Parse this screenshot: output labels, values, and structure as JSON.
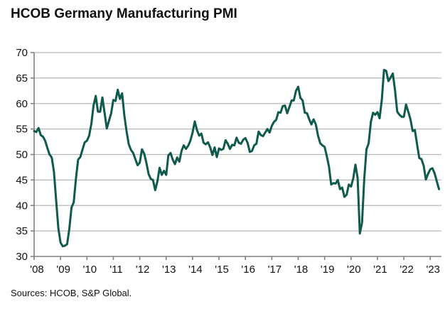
{
  "chart_data": {
    "type": "line",
    "title": "HCOB Germany Manufacturing PMI",
    "source": "Sources: HCOB, S&P Global.",
    "xlabel": "",
    "ylabel": "",
    "ylim": [
      30,
      70
    ],
    "yticks": [
      "30",
      "35",
      "40",
      "45",
      "50",
      "55",
      "60",
      "65",
      "70"
    ],
    "xticks": [
      "'08",
      "'09",
      "'10",
      "'11",
      "'12",
      "'13",
      "'14",
      "'15",
      "'16",
      "'17",
      "'18",
      "'19",
      "'20",
      "'21",
      "'22",
      "'23"
    ],
    "grid": "horizontal",
    "line_color": "#0e5a4c",
    "series": [
      {
        "x": [
          "2008-01",
          "2008-02",
          "2008-03",
          "2008-04",
          "2008-05",
          "2008-06",
          "2008-07",
          "2008-08",
          "2008-09",
          "2008-10",
          "2008-11",
          "2008-12",
          "2009-01",
          "2009-02",
          "2009-03",
          "2009-04",
          "2009-05",
          "2009-06",
          "2009-07",
          "2009-08",
          "2009-09",
          "2009-10",
          "2009-11",
          "2009-12",
          "2010-01",
          "2010-02",
          "2010-03",
          "2010-04",
          "2010-05",
          "2010-06",
          "2010-07",
          "2010-08",
          "2010-09",
          "2010-10",
          "2010-11",
          "2010-12",
          "2011-01",
          "2011-02",
          "2011-03",
          "2011-04",
          "2011-05",
          "2011-06",
          "2011-07",
          "2011-08",
          "2011-09",
          "2011-10",
          "2011-11",
          "2011-12",
          "2012-01",
          "2012-02",
          "2012-03",
          "2012-04",
          "2012-05",
          "2012-06",
          "2012-07",
          "2012-08",
          "2012-09",
          "2012-10",
          "2012-11",
          "2012-12",
          "2013-01",
          "2013-02",
          "2013-03",
          "2013-04",
          "2013-05",
          "2013-06",
          "2013-07",
          "2013-08",
          "2013-09",
          "2013-10",
          "2013-11",
          "2013-12",
          "2014-01",
          "2014-02",
          "2014-03",
          "2014-04",
          "2014-05",
          "2014-06",
          "2014-07",
          "2014-08",
          "2014-09",
          "2014-10",
          "2014-11",
          "2014-12",
          "2015-01",
          "2015-02",
          "2015-03",
          "2015-04",
          "2015-05",
          "2015-06",
          "2015-07",
          "2015-08",
          "2015-09",
          "2015-10",
          "2015-11",
          "2015-12",
          "2016-01",
          "2016-02",
          "2016-03",
          "2016-04",
          "2016-05",
          "2016-06",
          "2016-07",
          "2016-08",
          "2016-09",
          "2016-10",
          "2016-11",
          "2016-12",
          "2017-01",
          "2017-02",
          "2017-03",
          "2017-04",
          "2017-05",
          "2017-06",
          "2017-07",
          "2017-08",
          "2017-09",
          "2017-10",
          "2017-11",
          "2017-12",
          "2018-01",
          "2018-02",
          "2018-03",
          "2018-04",
          "2018-05",
          "2018-06",
          "2018-07",
          "2018-08",
          "2018-09",
          "2018-10",
          "2018-11",
          "2018-12",
          "2019-01",
          "2019-02",
          "2019-03",
          "2019-04",
          "2019-05",
          "2019-06",
          "2019-07",
          "2019-08",
          "2019-09",
          "2019-10",
          "2019-11",
          "2019-12",
          "2020-01",
          "2020-02",
          "2020-03",
          "2020-04",
          "2020-05",
          "2020-06",
          "2020-07",
          "2020-08",
          "2020-09",
          "2020-10",
          "2020-11",
          "2020-12",
          "2021-01",
          "2021-02",
          "2021-03",
          "2021-04",
          "2021-05",
          "2021-06",
          "2021-07",
          "2021-08",
          "2021-09",
          "2021-10",
          "2021-11",
          "2021-12",
          "2022-01",
          "2022-02",
          "2022-03",
          "2022-04",
          "2022-05",
          "2022-06",
          "2022-07",
          "2022-08",
          "2022-09",
          "2022-10",
          "2022-11",
          "2022-12",
          "2023-01",
          "2023-02",
          "2023-03",
          "2023-04",
          "2023-05"
        ],
        "values": [
          54.6,
          54.4,
          55.2,
          53.8,
          53.5,
          52.7,
          51.3,
          50.0,
          49.4,
          46.6,
          41.0,
          35.5,
          32.7,
          32.0,
          32.1,
          32.4,
          35.4,
          39.6,
          40.6,
          45.2,
          49.0,
          49.5,
          51.0,
          52.4,
          52.7,
          53.7,
          56.0,
          59.6,
          61.5,
          58.4,
          58.4,
          61.2,
          58.2,
          55.1,
          56.6,
          58.1,
          60.7,
          60.5,
          62.7,
          60.9,
          62.0,
          57.7,
          54.6,
          52.0,
          50.9,
          50.3,
          49.1,
          47.9,
          48.4,
          51.0,
          50.2,
          48.4,
          46.2,
          45.2,
          45.0,
          43.0,
          44.7,
          47.4,
          46.0,
          46.8,
          46.0,
          49.8,
          50.3,
          49.0,
          48.1,
          49.4,
          48.6,
          50.7,
          51.8,
          51.1,
          51.7,
          52.7,
          54.3,
          56.5,
          54.8,
          53.7,
          54.1,
          52.3,
          52.0,
          52.4,
          51.4,
          49.9,
          51.4,
          49.5,
          51.2,
          50.9,
          51.1,
          52.8,
          52.1,
          51.1,
          51.9,
          51.8,
          53.3,
          52.3,
          52.1,
          52.9,
          53.2,
          52.3,
          50.5,
          50.7,
          51.8,
          52.1,
          54.5,
          53.8,
          53.6,
          54.3,
          55.0,
          54.3,
          55.6,
          56.4,
          56.8,
          58.3,
          58.2,
          59.5,
          59.6,
          58.1,
          59.3,
          60.6,
          60.6,
          62.5,
          63.3,
          61.1,
          60.6,
          58.2,
          58.1,
          56.9,
          55.9,
          56.9,
          55.9,
          53.7,
          52.2,
          51.8,
          51.5,
          49.7,
          47.6,
          44.1,
          44.4,
          44.3,
          45.0,
          43.2,
          43.5,
          41.7,
          42.1,
          44.1,
          43.7,
          45.3,
          48.0,
          45.4,
          34.5,
          36.6,
          45.2,
          51.0,
          52.2,
          56.4,
          58.2,
          57.8,
          58.3,
          57.1,
          60.7,
          66.6,
          66.4,
          64.4,
          65.1,
          65.9,
          62.6,
          58.4,
          57.8,
          57.4,
          57.4,
          59.8,
          58.4,
          56.9,
          54.6,
          54.8,
          52.0,
          49.3,
          49.1,
          47.8,
          45.1,
          46.2,
          47.1,
          47.3,
          46.3,
          44.7,
          43.2
        ]
      }
    ]
  }
}
